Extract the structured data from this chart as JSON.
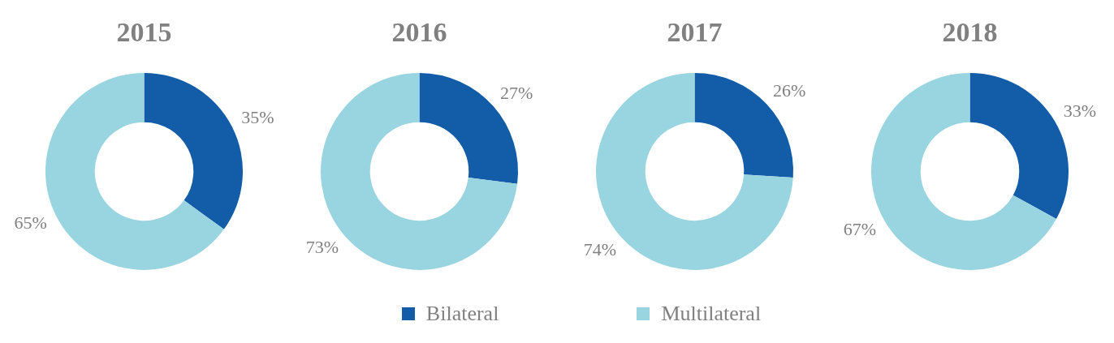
{
  "chart_data": [
    {
      "type": "donut",
      "title": "2015",
      "categories": [
        "Bilateral",
        "Multilateral"
      ],
      "values": [
        35,
        65
      ],
      "colors": [
        "#125ca8",
        "#99d5e0"
      ],
      "value_labels": [
        "35%",
        "65%"
      ],
      "legend": "bottom"
    },
    {
      "type": "donut",
      "title": "2016",
      "categories": [
        null,
        null
      ],
      "values": [
        27,
        73
      ],
      "colors": [
        "#125ca8",
        "#99d5e0"
      ],
      "value_labels": [
        "27%",
        "73%"
      ]
    },
    {
      "type": "donut",
      "title": "2017",
      "categories": [
        null,
        null
      ],
      "values": [
        26,
        74
      ],
      "colors": [
        "#125ca8",
        "#99d5e0"
      ],
      "value_labels": [
        "26%",
        "74%"
      ]
    },
    {
      "type": "donut",
      "title": "2018",
      "categories": [
        null,
        null
      ],
      "values": [
        33,
        67
      ],
      "colors": [
        "#125ca8",
        "#99d5e0"
      ],
      "value_labels": [
        "33%",
        "67%"
      ]
    }
  ]
}
